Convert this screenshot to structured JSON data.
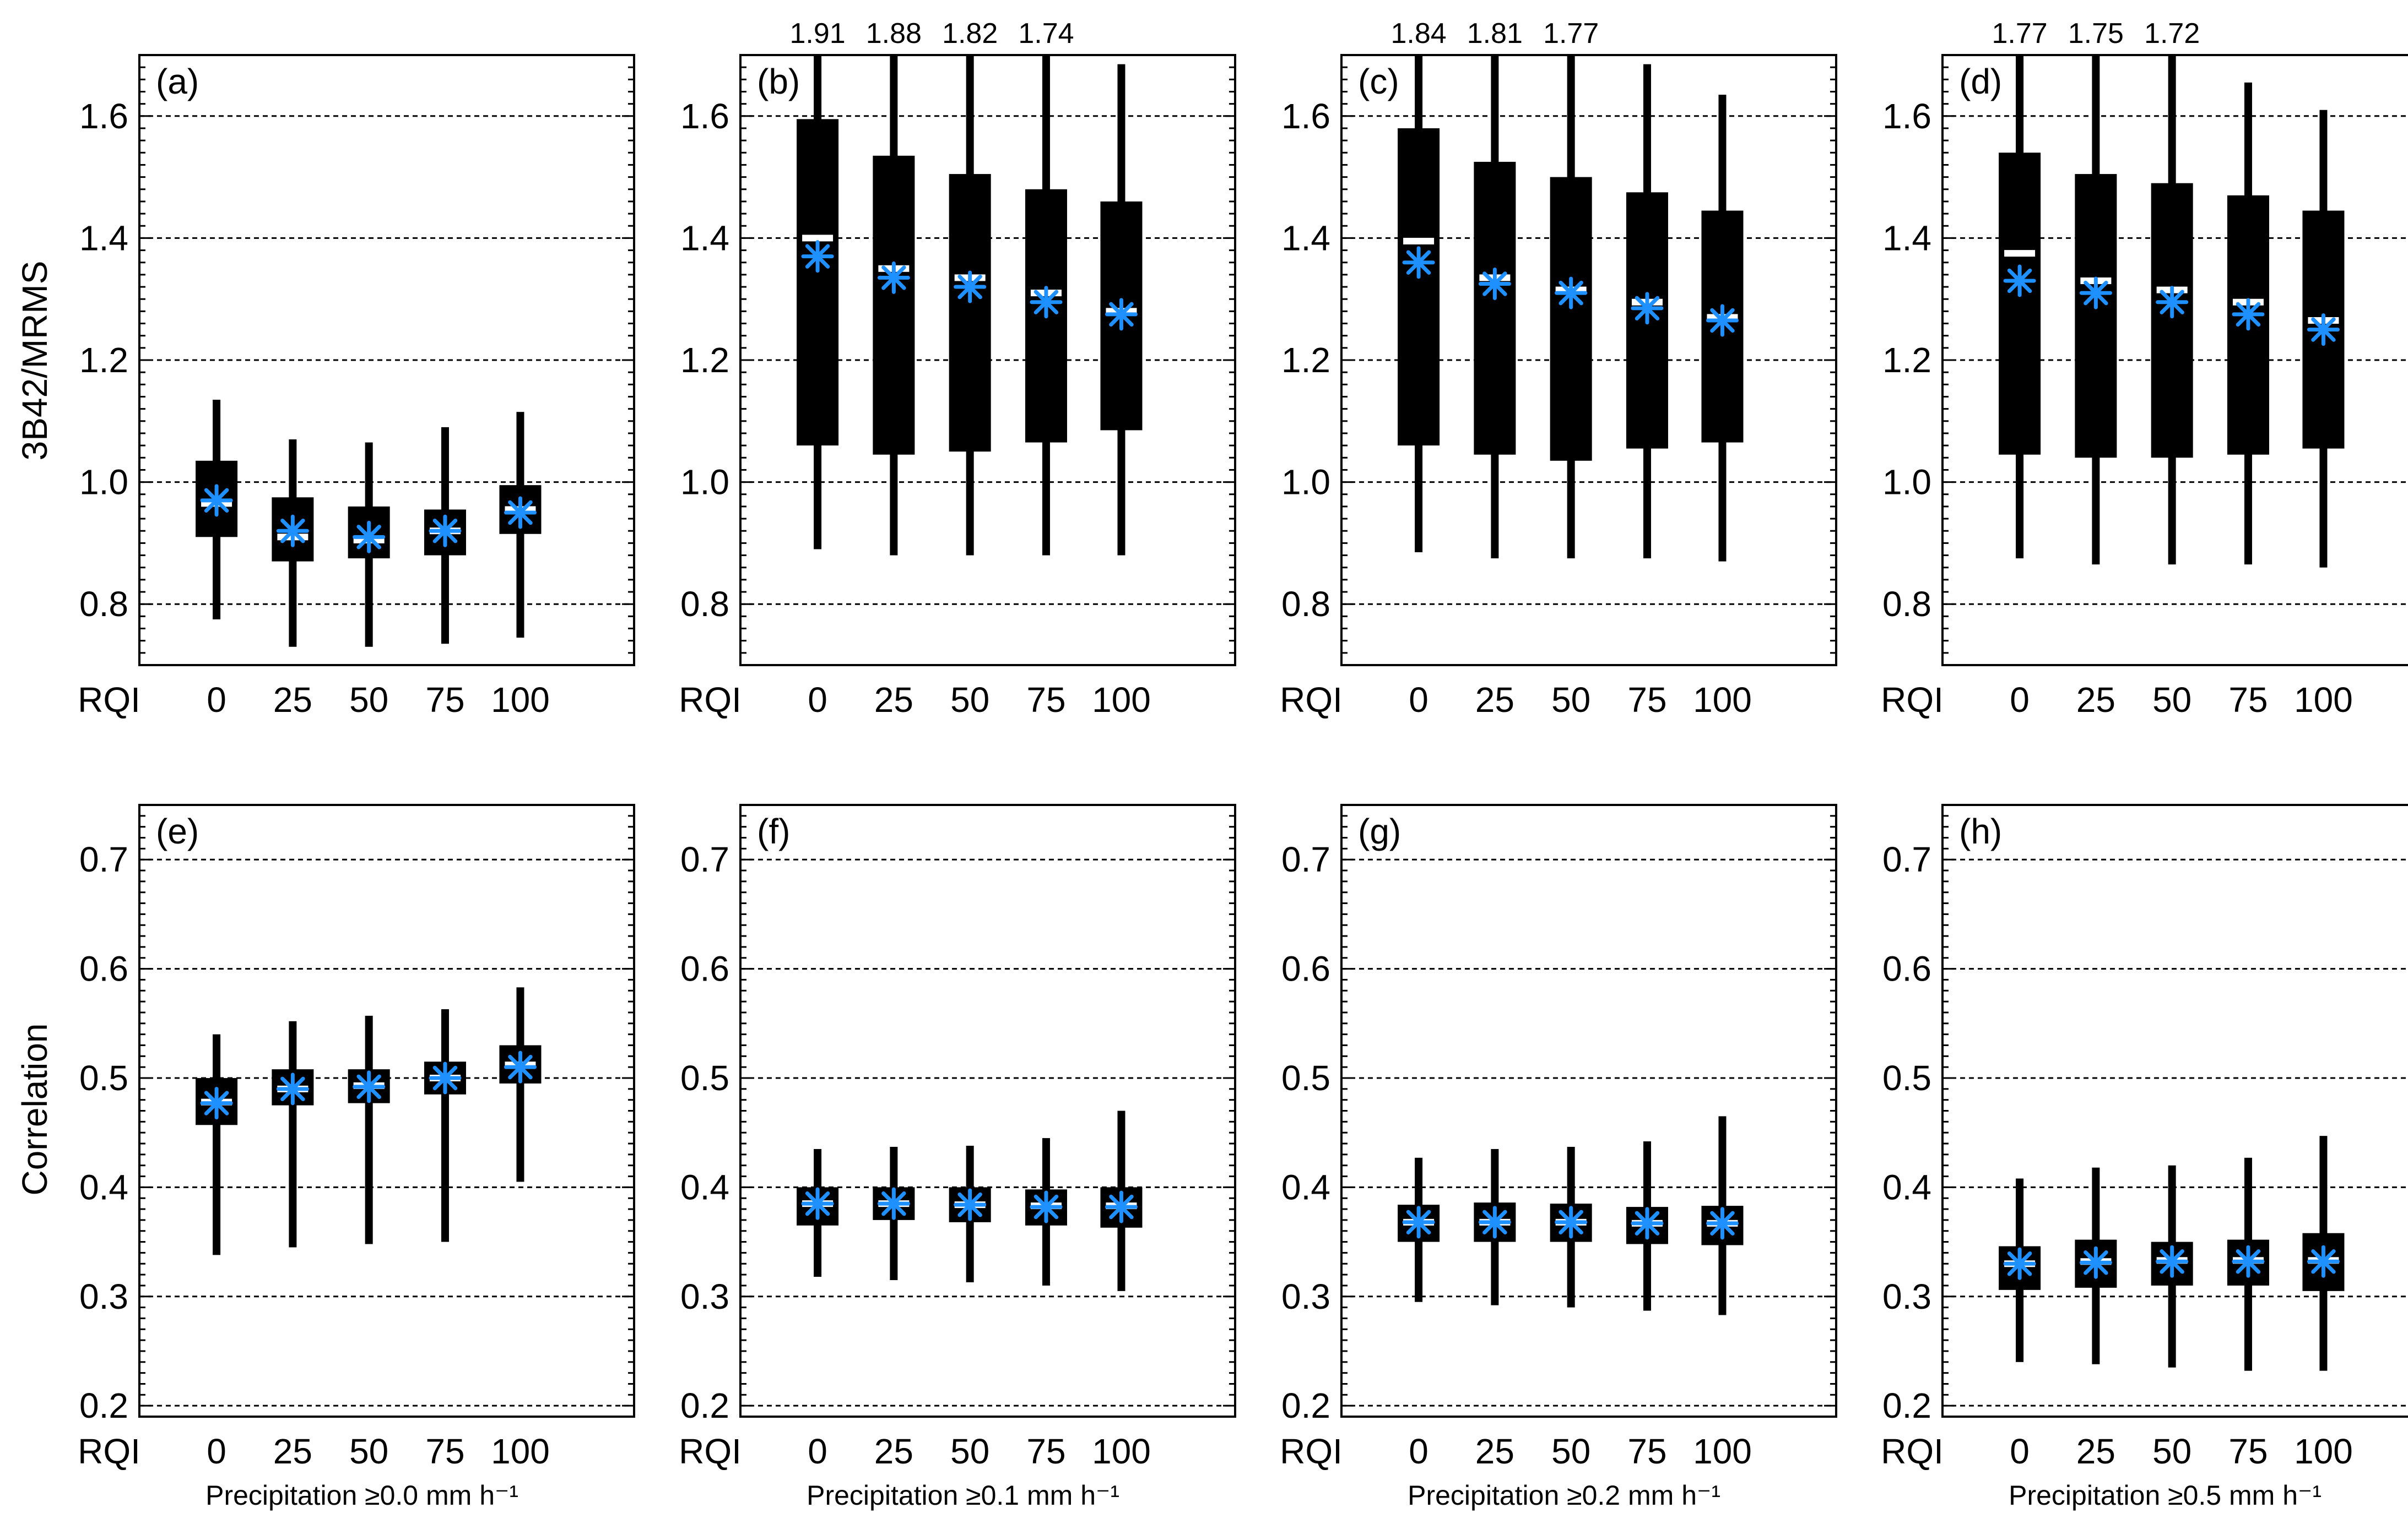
{
  "figure": {
    "row_labels": {
      "top": "3B42/MRMS",
      "bottom": "Correlation"
    },
    "x_prefix": "RQI",
    "x_categories": [
      "0",
      "25",
      "50",
      "75",
      "100"
    ],
    "precip_labels": [
      "Precipitation ≥0.0 mm h⁻¹",
      "Precipitation ≥0.1 mm h⁻¹",
      "Precipitation ≥0.2 mm h⁻¹",
      "Precipitation ≥0.5 mm h⁻¹"
    ],
    "colors": {
      "box": "#000000",
      "mean_marker": "#1e90ff",
      "median_line": "#ffffff",
      "grid": "#000000"
    }
  },
  "chart_data": [
    {
      "panel": "(a)",
      "type": "box",
      "ylabel": "3B42/MRMS",
      "categories": [
        "0",
        "25",
        "50",
        "75",
        "100"
      ],
      "ylim": [
        0.7,
        1.7
      ],
      "yticks": [
        "0.8",
        "1.0",
        "1.2",
        "1.4",
        "1.6"
      ],
      "grid": true,
      "whisker_low": [
        0.775,
        0.73,
        0.73,
        0.735,
        0.745
      ],
      "q1": [
        0.91,
        0.87,
        0.875,
        0.88,
        0.915
      ],
      "median": [
        0.965,
        0.91,
        0.905,
        0.92,
        0.955
      ],
      "mean": [
        0.97,
        0.92,
        0.91,
        0.92,
        0.95
      ],
      "q3": [
        1.035,
        0.975,
        0.96,
        0.955,
        0.995
      ],
      "whisker_high": [
        1.135,
        1.07,
        1.065,
        1.09,
        1.115
      ],
      "top_labels": []
    },
    {
      "panel": "(b)",
      "type": "box",
      "ylabel": "",
      "categories": [
        "0",
        "25",
        "50",
        "75",
        "100"
      ],
      "ylim": [
        0.7,
        1.7
      ],
      "yticks": [
        "0.8",
        "1.0",
        "1.2",
        "1.4",
        "1.6"
      ],
      "grid": true,
      "whisker_low": [
        0.89,
        0.88,
        0.88,
        0.88,
        0.88
      ],
      "q1": [
        1.06,
        1.045,
        1.05,
        1.065,
        1.085
      ],
      "median": [
        1.4,
        1.35,
        1.335,
        1.31,
        1.28
      ],
      "mean": [
        1.37,
        1.335,
        1.32,
        1.295,
        1.275
      ],
      "q3": [
        1.595,
        1.535,
        1.505,
        1.48,
        1.46
      ],
      "whisker_high": [
        1.91,
        1.88,
        1.82,
        1.74,
        1.685
      ],
      "top_labels": [
        "1.91",
        "1.88",
        "1.82",
        "1.74",
        ""
      ]
    },
    {
      "panel": "(c)",
      "type": "box",
      "ylabel": "",
      "categories": [
        "0",
        "25",
        "50",
        "75",
        "100"
      ],
      "ylim": [
        0.7,
        1.7
      ],
      "yticks": [
        "0.8",
        "1.0",
        "1.2",
        "1.4",
        "1.6"
      ],
      "grid": true,
      "whisker_low": [
        0.885,
        0.875,
        0.875,
        0.875,
        0.87
      ],
      "q1": [
        1.06,
        1.045,
        1.035,
        1.055,
        1.065
      ],
      "median": [
        1.395,
        1.335,
        1.315,
        1.295,
        1.27
      ],
      "mean": [
        1.36,
        1.325,
        1.31,
        1.285,
        1.265
      ],
      "q3": [
        1.58,
        1.525,
        1.5,
        1.475,
        1.445
      ],
      "whisker_high": [
        1.84,
        1.81,
        1.77,
        1.685,
        1.635
      ],
      "top_labels": [
        "1.84",
        "1.81",
        "1.77",
        "",
        ""
      ]
    },
    {
      "panel": "(d)",
      "type": "box",
      "ylabel": "",
      "categories": [
        "0",
        "25",
        "50",
        "75",
        "100"
      ],
      "ylim": [
        0.7,
        1.7
      ],
      "yticks": [
        "0.8",
        "1.0",
        "1.2",
        "1.4",
        "1.6"
      ],
      "grid": true,
      "whisker_low": [
        0.875,
        0.865,
        0.865,
        0.865,
        0.86
      ],
      "q1": [
        1.045,
        1.04,
        1.04,
        1.045,
        1.055
      ],
      "median": [
        1.375,
        1.33,
        1.315,
        1.295,
        1.265
      ],
      "mean": [
        1.33,
        1.31,
        1.295,
        1.275,
        1.25
      ],
      "q3": [
        1.54,
        1.505,
        1.49,
        1.47,
        1.445
      ],
      "whisker_high": [
        1.77,
        1.75,
        1.72,
        1.655,
        1.61
      ],
      "top_labels": [
        "1.77",
        "1.75",
        "1.72",
        "",
        ""
      ]
    },
    {
      "panel": "(e)",
      "type": "box",
      "ylabel": "Correlation",
      "categories": [
        "0",
        "25",
        "50",
        "75",
        "100"
      ],
      "ylim": [
        0.19,
        0.75
      ],
      "yticks": [
        "0.2",
        "0.3",
        "0.4",
        "0.5",
        "0.6",
        "0.7"
      ],
      "grid": true,
      "whisker_low": [
        0.338,
        0.345,
        0.348,
        0.35,
        0.405
      ],
      "q1": [
        0.457,
        0.475,
        0.477,
        0.485,
        0.495
      ],
      "median": [
        0.478,
        0.49,
        0.493,
        0.5,
        0.512
      ],
      "mean": [
        0.477,
        0.49,
        0.492,
        0.5,
        0.51
      ],
      "q3": [
        0.5,
        0.508,
        0.508,
        0.515,
        0.53
      ],
      "whisker_high": [
        0.54,
        0.552,
        0.557,
        0.563,
        0.583
      ],
      "top_labels": [],
      "xlabel": "Precipitation ≥0.0 mm h⁻¹"
    },
    {
      "panel": "(f)",
      "type": "box",
      "ylabel": "",
      "categories": [
        "0",
        "25",
        "50",
        "75",
        "100"
      ],
      "ylim": [
        0.19,
        0.75
      ],
      "yticks": [
        "0.2",
        "0.3",
        "0.4",
        "0.5",
        "0.6",
        "0.7"
      ],
      "grid": true,
      "whisker_low": [
        0.318,
        0.315,
        0.313,
        0.31,
        0.305
      ],
      "q1": [
        0.365,
        0.37,
        0.368,
        0.365,
        0.363
      ],
      "median": [
        0.385,
        0.385,
        0.384,
        0.383,
        0.383
      ],
      "mean": [
        0.385,
        0.385,
        0.384,
        0.382,
        0.382
      ],
      "q3": [
        0.4,
        0.4,
        0.4,
        0.398,
        0.4
      ],
      "whisker_high": [
        0.435,
        0.437,
        0.438,
        0.445,
        0.47
      ],
      "top_labels": [],
      "xlabel": "Precipitation ≥0.1 mm h⁻¹"
    },
    {
      "panel": "(g)",
      "type": "box",
      "ylabel": "",
      "categories": [
        "0",
        "25",
        "50",
        "75",
        "100"
      ],
      "ylim": [
        0.19,
        0.75
      ],
      "yticks": [
        "0.2",
        "0.3",
        "0.4",
        "0.5",
        "0.6",
        "0.7"
      ],
      "grid": true,
      "whisker_low": [
        0.295,
        0.292,
        0.29,
        0.287,
        0.283
      ],
      "q1": [
        0.35,
        0.35,
        0.35,
        0.348,
        0.347
      ],
      "median": [
        0.368,
        0.368,
        0.368,
        0.367,
        0.367
      ],
      "mean": [
        0.368,
        0.368,
        0.368,
        0.367,
        0.367
      ],
      "q3": [
        0.384,
        0.386,
        0.385,
        0.382,
        0.383
      ],
      "whisker_high": [
        0.427,
        0.435,
        0.437,
        0.442,
        0.465
      ],
      "top_labels": [],
      "xlabel": "Precipitation ≥0.2 mm h⁻¹"
    },
    {
      "panel": "(h)",
      "type": "box",
      "ylabel": "",
      "categories": [
        "0",
        "25",
        "50",
        "75",
        "100"
      ],
      "ylim": [
        0.19,
        0.75
      ],
      "yticks": [
        "0.2",
        "0.3",
        "0.4",
        "0.5",
        "0.6",
        "0.7"
      ],
      "grid": true,
      "whisker_low": [
        0.24,
        0.238,
        0.235,
        0.232,
        0.232
      ],
      "q1": [
        0.306,
        0.308,
        0.31,
        0.31,
        0.305
      ],
      "median": [
        0.33,
        0.332,
        0.333,
        0.333,
        0.333
      ],
      "mean": [
        0.33,
        0.331,
        0.332,
        0.332,
        0.332
      ],
      "q3": [
        0.346,
        0.352,
        0.35,
        0.352,
        0.358
      ],
      "whisker_high": [
        0.408,
        0.418,
        0.42,
        0.427,
        0.447
      ],
      "top_labels": [],
      "xlabel": "Precipitation ≥0.5 mm h⁻¹"
    }
  ]
}
